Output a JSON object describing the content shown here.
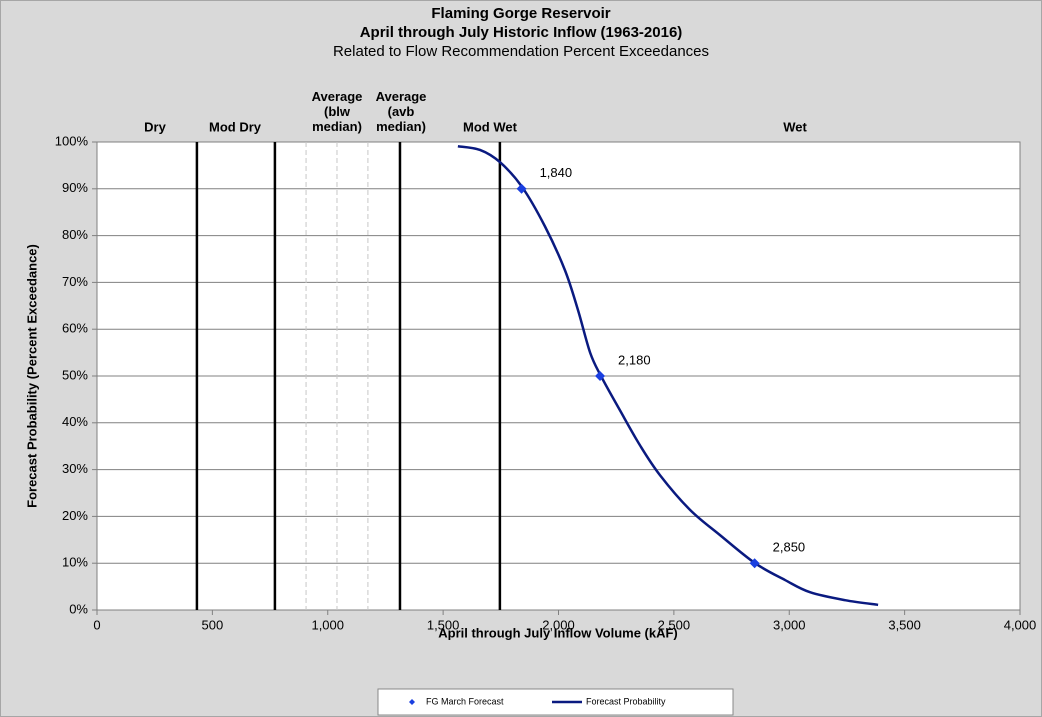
{
  "chart_data": {
    "type": "line",
    "title": "Flaming Gorge Reservoir",
    "subtitle": "April through July Historic Inflow (1963-2016)",
    "subtitle2": "Related to Flow Recommendation Percent Exceedances",
    "x_label": "April through July Inflow Volume (kAF)",
    "y_label": "Forecast Probability (Percent Exceedance)",
    "zones": [
      "Dry",
      "Mod Dry",
      "Average (blw median)",
      "Average (avb median)",
      "Mod Wet",
      "Wet"
    ],
    "zone_boundaries": [
      433,
      771,
      1313,
      1746
    ],
    "median_lines": [
      906,
      1040,
      1174
    ],
    "xlim": [
      0,
      4000
    ],
    "xticks": [
      0,
      500,
      {
        "value": 1000,
        "label": "1,000"
      },
      {
        "value": 1500,
        "label": "1,500"
      },
      {
        "value": 2000,
        "label": "2,000"
      },
      {
        "value": 2500,
        "label": "2,500"
      },
      {
        "value": 3000,
        "label": "3,000"
      },
      {
        "value": 3500,
        "label": "3,500"
      },
      {
        "value": 4000,
        "label": "4,000"
      }
    ],
    "ylim": [
      0,
      100
    ],
    "yticks": [
      {
        "value": 0,
        "label": "0%"
      },
      {
        "value": 10,
        "label": "10%"
      },
      {
        "value": 20,
        "label": "20%"
      },
      {
        "value": 30,
        "label": "30%"
      },
      {
        "value": 40,
        "label": "40%"
      },
      {
        "value": 50,
        "label": "50%"
      },
      {
        "value": 60,
        "label": "60%"
      },
      {
        "value": 70,
        "label": "70%"
      },
      {
        "value": 80,
        "label": "80%"
      },
      {
        "value": 90,
        "label": "90%"
      },
      {
        "value": 100,
        "label": "100%"
      }
    ],
    "grid": true,
    "legend": "bottom",
    "series": [
      {
        "name": "FG March Forecast",
        "color": "#1a3fe0",
        "marker": "diamond",
        "x": [
          1840,
          2180,
          2850
        ],
        "values": [
          90,
          50,
          10
        ],
        "value_labels": [
          "1,840",
          "2,180",
          "2,850"
        ]
      },
      {
        "name": "Forecast Probability",
        "color": "#0a1a80",
        "marker": "none",
        "x": [
          1564,
          1660,
          1746,
          1842,
          1941,
          2028,
          2085,
          2137,
          2184,
          2266,
          2353,
          2440,
          2570,
          2700,
          2852,
          2982,
          3090,
          3242,
          3385
        ],
        "values": [
          99.1,
          98.3,
          95.7,
          90.4,
          82,
          72.6,
          64,
          55,
          50,
          42.7,
          35.2,
          28.8,
          21.4,
          16,
          10,
          6.4,
          3.8,
          2.1,
          1.1
        ]
      }
    ]
  }
}
